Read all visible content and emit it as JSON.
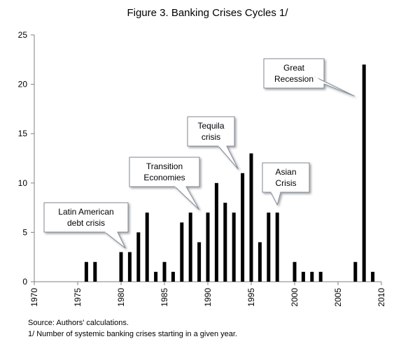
{
  "title": "Figure 3. Banking Crises Cycles  1/",
  "notes": {
    "source": "Source: Authors' calculations.",
    "footnote": "1/ Number of systemic banking crises starting in a given year."
  },
  "colors": {
    "bar": "#000000",
    "axis": "#808080",
    "callout_fill": "#ffffff",
    "callout_stroke": "#7f8a96"
  },
  "chart_data": {
    "type": "bar",
    "xlim": [
      1970,
      2010
    ],
    "ylim": [
      0,
      25
    ],
    "x_ticks": [
      1970,
      1975,
      1980,
      1985,
      1990,
      1995,
      2000,
      2005,
      2010
    ],
    "y_ticks": [
      0,
      5,
      10,
      15,
      20,
      25
    ],
    "grid": false,
    "legend": "none",
    "x": [
      1976,
      1977,
      1980,
      1981,
      1982,
      1983,
      1984,
      1985,
      1986,
      1987,
      1988,
      1989,
      1990,
      1991,
      1992,
      1993,
      1994,
      1995,
      1996,
      1997,
      1998,
      2000,
      2001,
      2002,
      2003,
      2007,
      2008,
      2009
    ],
    "values": [
      2,
      2,
      3,
      3,
      5,
      7,
      1,
      2,
      1,
      6,
      7,
      4,
      7,
      10,
      8,
      7,
      11,
      13,
      4,
      7,
      7,
      2,
      1,
      1,
      1,
      2,
      22,
      1
    ],
    "annotations": [
      {
        "name": "latin-american-debt-crisis",
        "lines": [
          "Latin American",
          "debt crisis"
        ]
      },
      {
        "name": "transition-economies",
        "lines": [
          "Transition",
          "Economies"
        ]
      },
      {
        "name": "tequila-crisis",
        "lines": [
          "Tequila",
          "crisis"
        ]
      },
      {
        "name": "asian-crisis",
        "lines": [
          "Asian",
          "Crisis"
        ]
      },
      {
        "name": "great-recession",
        "lines": [
          "Great",
          "Recession"
        ]
      }
    ]
  }
}
